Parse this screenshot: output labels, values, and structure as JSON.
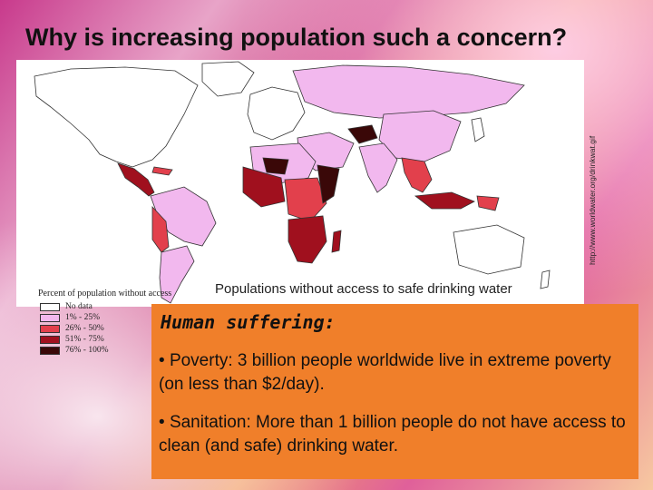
{
  "title": "Why is increasing population such a concern?",
  "map": {
    "source_url": "http://www.worldwater.org/drinkwat.gif",
    "caption": "Populations without access to safe drinking water",
    "legend": {
      "title": "Percent of population without access",
      "items": [
        {
          "label": "No data",
          "color": "#ffffff"
        },
        {
          "label": "1% - 25%",
          "color": "#f2b8ee"
        },
        {
          "label": "26% - 50%",
          "color": "#e2404c"
        },
        {
          "label": "51% - 75%",
          "color": "#a0101e"
        },
        {
          "label": "76% - 100%",
          "color": "#3a0808"
        }
      ]
    }
  },
  "content": {
    "heading": "Human suffering:",
    "bullets": [
      {
        "term": "Poverty",
        "text": ":  3 billion people worldwide live in extreme poverty (on less than $2/day)."
      },
      {
        "term": "Sanitation",
        "text": ":  More than 1 billion people do not have access to clean (and safe) drinking water."
      }
    ]
  }
}
